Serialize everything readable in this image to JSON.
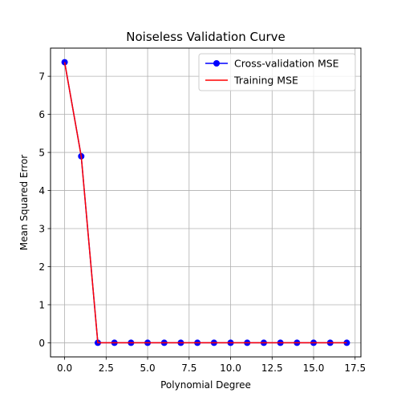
{
  "chart_data": {
    "type": "line",
    "title": "Noiseless Validation Curve",
    "xlabel": "Polynomial Degree",
    "ylabel": "Mean Squared Error",
    "xlim": [
      -0.85,
      17.85
    ],
    "ylim": [
      -0.37,
      7.74
    ],
    "xticks": [
      0,
      2.5,
      5,
      7.5,
      10,
      12.5,
      15,
      17.5
    ],
    "xtick_labels": [
      "0.0",
      "2.5",
      "5.0",
      "7.5",
      "10.0",
      "12.5",
      "15.0",
      "17.5"
    ],
    "yticks": [
      0,
      1,
      2,
      3,
      4,
      5,
      6,
      7
    ],
    "ytick_labels": [
      "0",
      "1",
      "2",
      "3",
      "4",
      "5",
      "6",
      "7"
    ],
    "grid": true,
    "legend_position": "top-right",
    "x": [
      0,
      1,
      2,
      3,
      4,
      5,
      6,
      7,
      8,
      9,
      10,
      11,
      12,
      13,
      14,
      15,
      16,
      17
    ],
    "series": [
      {
        "name": "Cross-validation MSE",
        "color": "#0000ff",
        "marker": "circle",
        "values": [
          7.37,
          4.9,
          0,
          0,
          0,
          0,
          0,
          0,
          0,
          0,
          0,
          0,
          0,
          0,
          0,
          0,
          0,
          0
        ]
      },
      {
        "name": "Training MSE",
        "color": "#ff0000",
        "marker": "none",
        "values": [
          7.37,
          4.9,
          0,
          0,
          0,
          0,
          0,
          0,
          0,
          0,
          0,
          0,
          0,
          0,
          0,
          0,
          0,
          0
        ]
      }
    ]
  }
}
